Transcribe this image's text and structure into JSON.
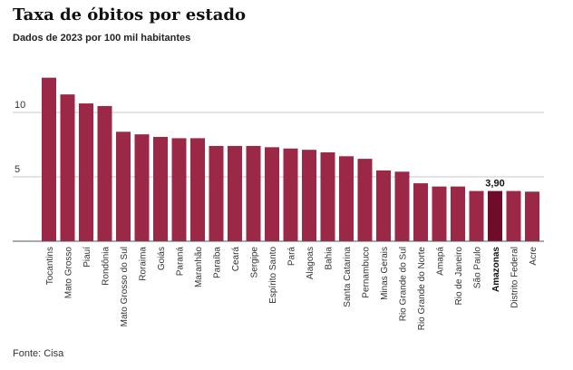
{
  "header": {
    "title": "Taxa de óbitos por estado",
    "subtitle": "Dados de 2023 por 100 mil habitantes"
  },
  "footer": {
    "source": "Fonte: Cisa"
  },
  "colors": {
    "bar": "#9c2847",
    "highlight_bar": "#6e0c2a",
    "grid": "#c8c8c8",
    "axis": "#555555"
  },
  "chart_data": {
    "type": "bar",
    "title": "",
    "xlabel": "",
    "ylabel": "",
    "ylim": [
      0,
      13
    ],
    "yticks": [
      5,
      10
    ],
    "ytick_labels": [
      "5",
      "10"
    ],
    "grid": true,
    "categories": [
      "Tocantins",
      "Mato Grosso",
      "Piauí",
      "Rondônia",
      "Mato Grosso do Sul",
      "Roraima",
      "Goiás",
      "Paraná",
      "Maranhão",
      "Paraíba",
      "Ceará",
      "Sergipe",
      "Espírito Santo",
      "Pará",
      "Alagoas",
      "Bahia",
      "Santa Catarina",
      "Pernambuco",
      "Minas Gerais",
      "Rio Grande do Sul",
      "Rio Grande do Norte",
      "Amapá",
      "Rio de Janeiro",
      "São Paulo",
      "Amazonas",
      "Distrito Federal",
      "Acre"
    ],
    "values": [
      12.7,
      11.4,
      10.7,
      10.5,
      8.5,
      8.3,
      8.1,
      8.0,
      8.0,
      7.4,
      7.4,
      7.4,
      7.3,
      7.2,
      7.1,
      6.9,
      6.6,
      6.4,
      5.5,
      5.4,
      4.5,
      4.25,
      4.25,
      3.9,
      3.9,
      3.9,
      3.85
    ],
    "highlight": {
      "category": "Amazonas",
      "label": "3,90"
    }
  }
}
